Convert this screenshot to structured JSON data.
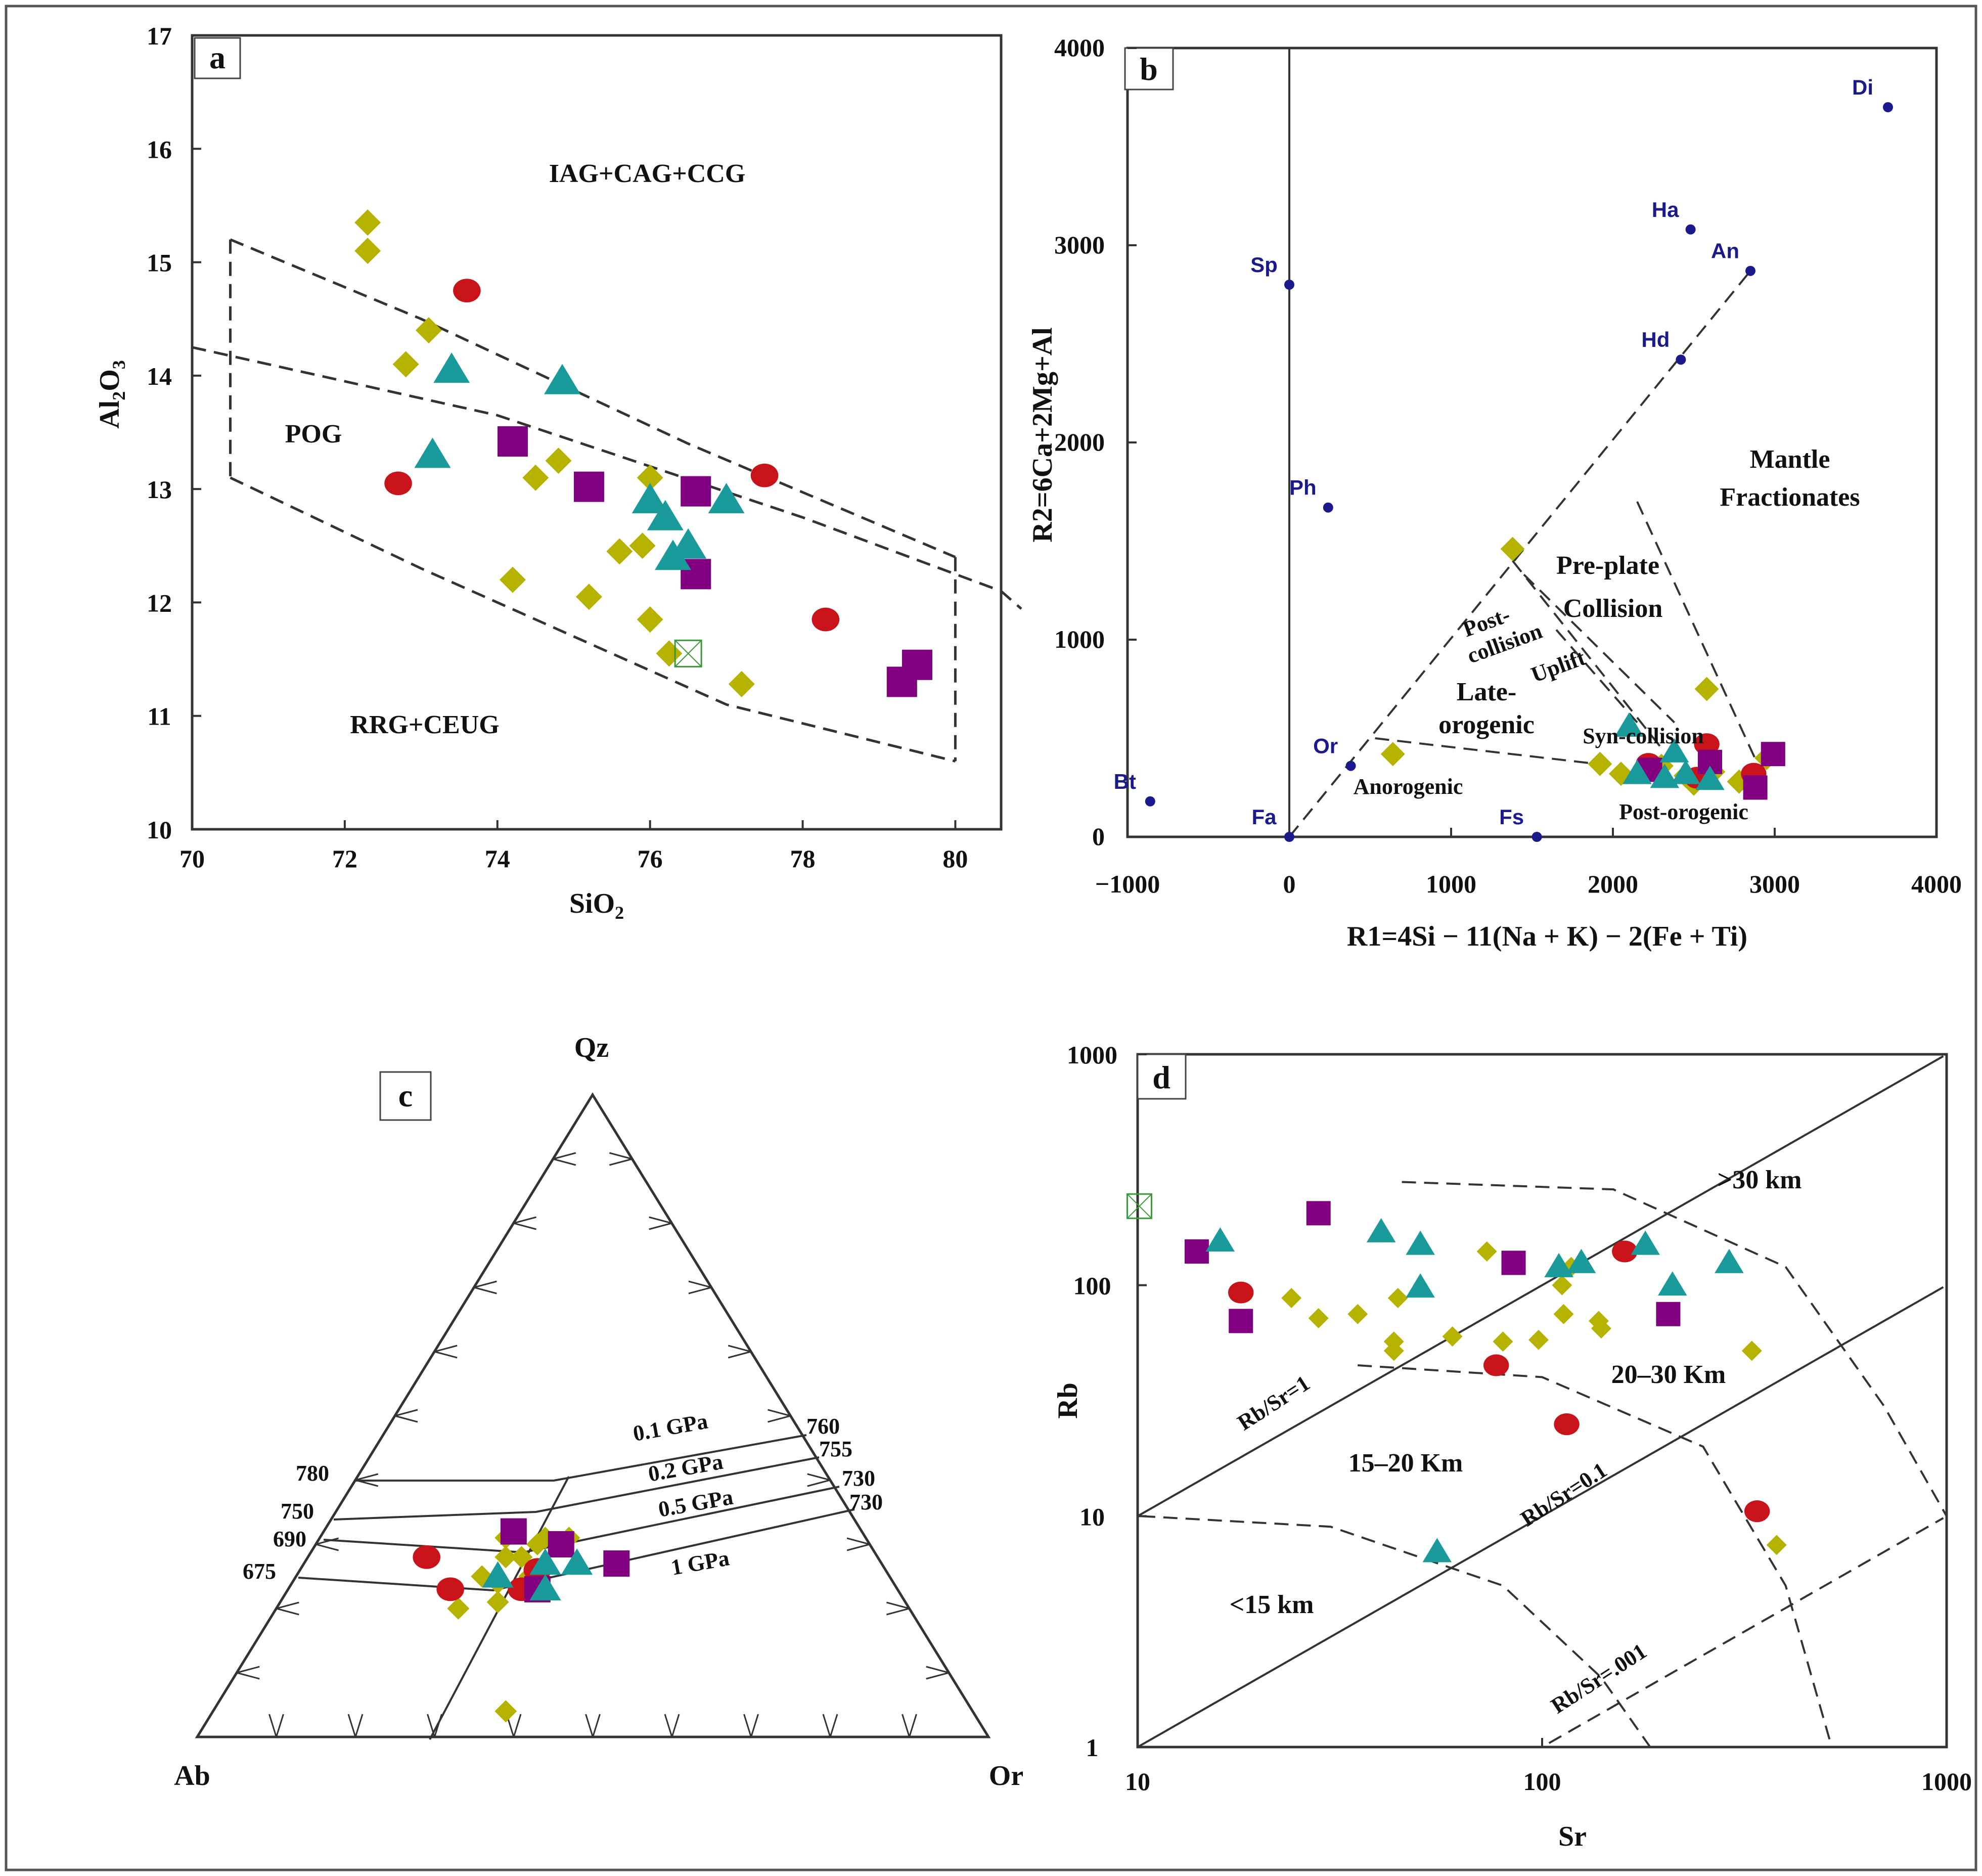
{
  "figure": {
    "colors": {
      "diamond": "#b5b300",
      "circle": "#c8131b",
      "square": "#800080",
      "triangle": "#1a9a9a",
      "mineral": "#1a1a8c",
      "line": "#333333"
    }
  },
  "chart_data": [
    {
      "panel": "a",
      "type": "scatter",
      "xlabel": "SiO2",
      "ylabel": "Al2O3",
      "xlim": [
        70,
        80.6
      ],
      "ylim": [
        10,
        17
      ],
      "xticks": [
        "70",
        "72",
        "74",
        "76",
        "78",
        "80"
      ],
      "yticks": [
        "10",
        "11",
        "12",
        "13",
        "14",
        "15",
        "16",
        "17"
      ],
      "regions": [
        "IAG+CAG+CCG",
        "POG",
        "RRG+CEUG"
      ],
      "boundaries": {
        "pog_upper": [
          [
            70.5,
            15.2
          ],
          [
            73.0,
            14.5
          ],
          [
            76.5,
            13.4
          ],
          [
            80.0,
            12.4
          ]
        ],
        "pog_lower": [
          [
            70.5,
            13.1
          ],
          [
            73.0,
            12.3
          ],
          [
            77.0,
            11.1
          ],
          [
            80.0,
            10.6
          ]
        ],
        "long_line": [
          [
            70.0,
            14.25
          ],
          [
            74.0,
            13.65
          ],
          [
            78.0,
            12.75
          ],
          [
            80.6,
            12.1
          ]
        ]
      },
      "series": [
        {
          "name": "diamond",
          "points": [
            [
              72.3,
              15.35
            ],
            [
              72.3,
              15.1
            ],
            [
              73.1,
              14.4
            ],
            [
              72.8,
              14.1
            ],
            [
              74.8,
              13.25
            ],
            [
              74.5,
              13.1
            ],
            [
              76.0,
              13.1
            ],
            [
              75.6,
              12.45
            ],
            [
              75.9,
              12.5
            ],
            [
              74.2,
              12.2
            ],
            [
              75.2,
              12.05
            ],
            [
              76.0,
              11.85
            ],
            [
              76.25,
              11.55
            ],
            [
              77.2,
              11.28
            ]
          ]
        },
        {
          "name": "circle",
          "points": [
            [
              73.6,
              14.75
            ],
            [
              72.7,
              13.05
            ],
            [
              77.5,
              13.12
            ],
            [
              78.3,
              11.85
            ]
          ]
        },
        {
          "name": "square",
          "points": [
            [
              74.2,
              13.42
            ],
            [
              75.2,
              13.02
            ],
            [
              76.6,
              12.98
            ],
            [
              76.6,
              12.25
            ],
            [
              79.5,
              11.45
            ],
            [
              79.3,
              11.3
            ]
          ]
        },
        {
          "name": "triangle",
          "points": [
            [
              73.4,
              14.05
            ],
            [
              74.85,
              13.95
            ],
            [
              73.15,
              13.3
            ],
            [
              77.0,
              12.9
            ],
            [
              76.0,
              12.9
            ],
            [
              76.2,
              12.75
            ],
            [
              76.5,
              12.5
            ],
            [
              76.3,
              12.4
            ]
          ]
        },
        {
          "name": "boxed-x",
          "points": [
            [
              76.5,
              11.55
            ]
          ]
        }
      ]
    },
    {
      "panel": "b",
      "type": "scatter",
      "xlabel": "R1=4Si − 11(Na + K) − 2(Fe + Ti)",
      "ylabel": "R2=6Ca+2Mg+Al",
      "xlim": [
        -1000,
        4000
      ],
      "ylim": [
        0,
        4000
      ],
      "xticks": [
        "−1000",
        "0",
        "1000",
        "2000",
        "3000",
        "4000"
      ],
      "yticks": [
        "0",
        "1000",
        "2000",
        "3000",
        "4000"
      ],
      "regions": [
        "Mantle Fractionates",
        "Pre-plate",
        "Collision",
        "Post-collision",
        "Uplift",
        "Late-orogenic",
        "Syn-collision",
        "Anorogenic",
        "Post-orogenic"
      ],
      "minerals": [
        {
          "label": "Di",
          "x": 3700,
          "y": 3700
        },
        {
          "label": "Ha",
          "x": 2480,
          "y": 3080
        },
        {
          "label": "An",
          "x": 2850,
          "y": 2870
        },
        {
          "label": "Hd",
          "x": 2420,
          "y": 2420
        },
        {
          "label": "Sp",
          "x": 0,
          "y": 2800
        },
        {
          "label": "Ph",
          "x": 240,
          "y": 1670
        },
        {
          "label": "Or",
          "x": 380,
          "y": 360
        },
        {
          "label": "Bt",
          "x": -860,
          "y": 180
        },
        {
          "label": "Fa",
          "x": 0,
          "y": 0
        },
        {
          "label": "Fs",
          "x": 1530,
          "y": 0
        }
      ],
      "series": [
        {
          "name": "diamond",
          "points": [
            [
              1380,
              1460
            ],
            [
              2580,
              750
            ],
            [
              640,
              420
            ],
            [
              1920,
              370
            ],
            [
              2050,
              320
            ],
            [
              2300,
              360
            ],
            [
              2450,
              310
            ],
            [
              2620,
              330
            ],
            [
              2780,
              280
            ],
            [
              2950,
              400
            ],
            [
              2500,
              270
            ]
          ]
        },
        {
          "name": "circle",
          "points": [
            [
              2220,
              370
            ],
            [
              2580,
              470
            ],
            [
              2520,
              300
            ],
            [
              2870,
              320
            ]
          ]
        },
        {
          "name": "square",
          "points": [
            [
              2230,
              340
            ],
            [
              2600,
              380
            ],
            [
              2990,
              420
            ],
            [
              2880,
              250
            ]
          ]
        },
        {
          "name": "triangle",
          "points": [
            [
              2100,
              560
            ],
            [
              2380,
              430
            ],
            [
              2150,
              320
            ],
            [
              2450,
              320
            ],
            [
              2600,
              290
            ],
            [
              2320,
              300
            ]
          ]
        }
      ]
    },
    {
      "panel": "c",
      "type": "ternary",
      "apices": {
        "top": "Qz",
        "left": "Ab",
        "right": "Or"
      },
      "isobar_labels": [
        "0.1 GPa",
        "0.2 GPa",
        "0.5 GPa",
        "1 GPa"
      ],
      "temperature_labels_left": [
        "780",
        "750",
        "690",
        "675"
      ],
      "temperature_labels_right": [
        "760",
        "755",
        "730",
        "730"
      ],
      "series": [
        {
          "name": "diamond",
          "points": [
            [
              0.33,
              0.2
            ],
            [
              0.39,
              0.31
            ],
            [
              0.39,
              0.28
            ],
            [
              0.41,
              0.28
            ],
            [
              0.43,
              0.3
            ],
            [
              0.38,
              0.24
            ],
            [
              0.42,
              0.25
            ],
            [
              0.36,
              0.25
            ],
            [
              0.38,
              0.21
            ],
            [
              0.44,
              0.31
            ],
            [
              0.47,
              0.31
            ],
            [
              0.39,
              0.04
            ]
          ]
        },
        {
          "name": "circle",
          "points": [
            [
              0.29,
              0.28
            ],
            [
              0.32,
              0.23
            ],
            [
              0.43,
              0.26
            ],
            [
              0.41,
              0.23
            ]
          ]
        },
        {
          "name": "square",
          "points": [
            [
              0.4,
              0.32
            ],
            [
              0.46,
              0.3
            ],
            [
              0.53,
              0.27
            ],
            [
              0.43,
              0.23
            ]
          ]
        },
        {
          "name": "triangle",
          "points": [
            [
              0.38,
              0.25
            ],
            [
              0.44,
              0.27
            ],
            [
              0.48,
              0.27
            ],
            [
              0.44,
              0.23
            ]
          ]
        }
      ]
    },
    {
      "panel": "d",
      "type": "scatter",
      "scale": "log-log",
      "xlabel": "Sr",
      "ylabel": "Rb",
      "xlim": [
        10,
        1000
      ],
      "ylim": [
        1,
        1000
      ],
      "xticks": [
        "10",
        "100",
        "1000"
      ],
      "yticks": [
        "1",
        "10",
        "100",
        "1000"
      ],
      "ratio_labels": [
        "Rb/Sr=1",
        "Rb/Sr=0.1",
        "Rb/Sr=.001"
      ],
      "depth_labels": [
        ">30 km",
        "20–30 Km",
        "15–20 Km",
        "<15 km"
      ],
      "series": [
        {
          "name": "diamond",
          "points": [
            [
              24,
              88
            ],
            [
              28,
              72
            ],
            [
              35,
              75
            ],
            [
              44,
              88
            ],
            [
              43,
              57
            ],
            [
              43,
              52
            ],
            [
              60,
              60
            ],
            [
              73,
              140
            ],
            [
              80,
              57
            ],
            [
              98,
              58
            ],
            [
              112,
              100
            ],
            [
              113,
              75
            ],
            [
              118,
              120
            ],
            [
              138,
              70
            ],
            [
              140,
              65
            ],
            [
              330,
              52
            ],
            [
              380,
              7.5
            ]
          ]
        },
        {
          "name": "circle",
          "points": [
            [
              18,
              93
            ],
            [
              77,
              45
            ],
            [
              115,
              25
            ],
            [
              160,
              140
            ],
            [
              340,
              10.5
            ]
          ]
        },
        {
          "name": "square",
          "points": [
            [
              14,
              140
            ],
            [
              18,
              70
            ],
            [
              28,
              205
            ],
            [
              85,
              125
            ],
            [
              205,
              75
            ]
          ]
        },
        {
          "name": "triangle",
          "points": [
            [
              16,
              155
            ],
            [
              40,
              170
            ],
            [
              50,
              150
            ],
            [
              50,
              98
            ],
            [
              110,
              120
            ],
            [
              125,
              125
            ],
            [
              180,
              150
            ],
            [
              210,
              100
            ],
            [
              290,
              125
            ],
            [
              55,
              7
            ]
          ]
        },
        {
          "name": "boxed-x",
          "points": [
            [
              10.1,
              220
            ]
          ]
        }
      ]
    }
  ]
}
